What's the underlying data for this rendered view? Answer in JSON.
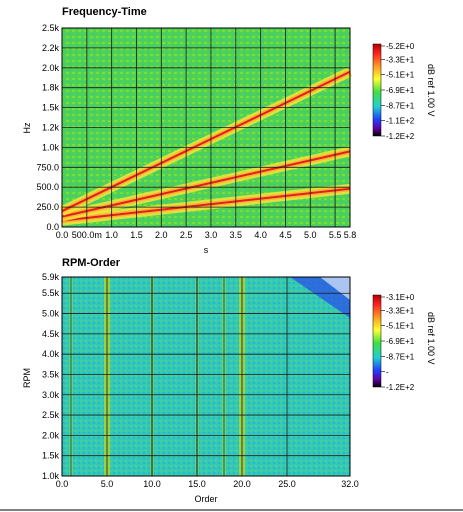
{
  "chart_data": [
    {
      "type": "heatmap",
      "title": "Frequency-Time",
      "xlabel": "s",
      "ylabel": "Hz",
      "xlim": [
        0,
        5.8
      ],
      "ylim": [
        0,
        2500
      ],
      "grid": true,
      "x_ticks": [
        {
          "value": 0,
          "label": "0.0"
        },
        {
          "value": 0.5,
          "label": "500.0m"
        },
        {
          "value": 1.0,
          "label": "1.0"
        },
        {
          "value": 1.5,
          "label": "1.5"
        },
        {
          "value": 2.0,
          "label": "2.0"
        },
        {
          "value": 2.5,
          "label": "2.5"
        },
        {
          "value": 3.0,
          "label": "3.0"
        },
        {
          "value": 3.5,
          "label": "3.5"
        },
        {
          "value": 4.0,
          "label": "4.0"
        },
        {
          "value": 4.5,
          "label": "4.5"
        },
        {
          "value": 5.0,
          "label": "5.0"
        },
        {
          "value": 5.5,
          "label": "5.5"
        },
        {
          "value": 5.8,
          "label": "5.8"
        }
      ],
      "y_ticks": [
        {
          "value": 0,
          "label": "0.0"
        },
        {
          "value": 250,
          "label": "250.0"
        },
        {
          "value": 500,
          "label": "500.0"
        },
        {
          "value": 750,
          "label": "750.0"
        },
        {
          "value": 1000,
          "label": "1.0k"
        },
        {
          "value": 1250,
          "label": "1.2k"
        },
        {
          "value": 1500,
          "label": "1.5k"
        },
        {
          "value": 1750,
          "label": "1.8k"
        },
        {
          "value": 2000,
          "label": "2.0k"
        },
        {
          "value": 2250,
          "label": "2.2k"
        },
        {
          "value": 2500,
          "label": "2.5k"
        }
      ],
      "ridges": [
        {
          "x": [
            0,
            5.8
          ],
          "y": [
            80,
            480
          ]
        },
        {
          "x": [
            0,
            5.8
          ],
          "y": [
            130,
            950
          ]
        },
        {
          "x": [
            0,
            5.8
          ],
          "y": [
            200,
            1950
          ]
        }
      ],
      "colorbar": {
        "label": "dB ref 1.00 V",
        "range": [
          -120,
          -5.2
        ],
        "ticks": [
          "-5.2E+0",
          "-3.3E+1",
          "-5.1E+1",
          "-6.9E+1",
          "-8.7E+1",
          "-1.1E+2",
          "-1.2E+2"
        ]
      }
    },
    {
      "type": "heatmap",
      "title": "RPM-Order",
      "xlabel": "Order",
      "ylabel": "RPM",
      "xlim": [
        0,
        32
      ],
      "ylim": [
        1000,
        5900
      ],
      "grid": true,
      "x_ticks": [
        {
          "value": 0,
          "label": "0.0"
        },
        {
          "value": 5,
          "label": "5.0"
        },
        {
          "value": 10,
          "label": "10.0"
        },
        {
          "value": 15,
          "label": "15.0"
        },
        {
          "value": 20,
          "label": "20.0"
        },
        {
          "value": 25,
          "label": "25.0"
        },
        {
          "value": 32,
          "label": "32.0"
        }
      ],
      "y_ticks": [
        {
          "value": 1000,
          "label": "1.0k"
        },
        {
          "value": 1500,
          "label": "1.5k"
        },
        {
          "value": 2000,
          "label": "2.0k"
        },
        {
          "value": 2500,
          "label": "2.5k"
        },
        {
          "value": 3000,
          "label": "3.0k"
        },
        {
          "value": 3500,
          "label": "3.5k"
        },
        {
          "value": 4000,
          "label": "4.0k"
        },
        {
          "value": 4500,
          "label": "4.5k"
        },
        {
          "value": 5000,
          "label": "5.0k"
        },
        {
          "value": 5500,
          "label": "5.5k"
        },
        {
          "value": 5900,
          "label": "5.9k"
        }
      ],
      "order_lines": [
        1.0,
        5.0,
        10.0,
        15.0,
        18.0,
        20.0
      ],
      "colorbar": {
        "label": "dB ref 1.00 V",
        "range": [
          -120,
          -3.1
        ],
        "ticks": [
          "-3.1E+0",
          "-3.3E+1",
          "-5.1E+1",
          "-6.9E+1",
          "-8.7E+1",
          "-",
          "-1.2E+2"
        ]
      }
    }
  ],
  "colors": {
    "background_low": "#5fd35a",
    "background_high": "#22c7c0",
    "peak": "#e22020",
    "mid": "#f6e43a",
    "grid": "#1a1a1a"
  }
}
